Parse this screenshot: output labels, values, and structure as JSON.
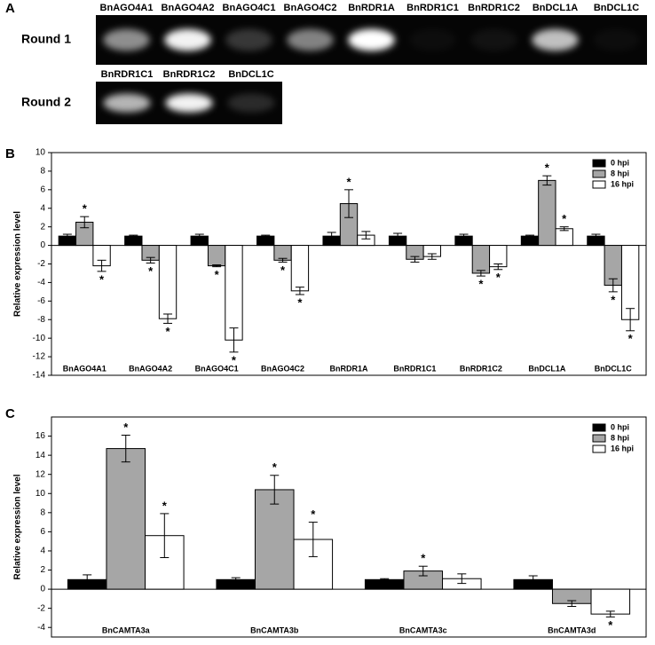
{
  "panel_labels": [
    "A",
    "B",
    "C"
  ],
  "gel": {
    "rounds": [
      {
        "label": "Round 1",
        "lanes": [
          "BnAGO4A1",
          "BnAGO4A2",
          "BnAGO4C1",
          "BnAGO4C2",
          "BnRDR1A",
          "BnRDR1C1",
          "BnRDR1C2",
          "BnDCL1A",
          "BnDCL1C"
        ]
      },
      {
        "label": "Round 2",
        "lanes": [
          "BnRDR1C1",
          "BnRDR1C2",
          "BnDCL1C"
        ]
      }
    ]
  },
  "chart_data": [
    {
      "type": "bar",
      "y_label": "Relative expression level",
      "categories": [
        "BnAGO4A1",
        "BnAGO4A2",
        "BnAGO4C1",
        "BnAGO4C2",
        "BnRDR1A",
        "BnRDR1C1",
        "BnRDR1C2",
        "BnDCL1A",
        "BnDCL1C"
      ],
      "series": [
        {
          "name": "0 hpi",
          "color": "#000000",
          "values": [
            1,
            1,
            1,
            1,
            1,
            1,
            1,
            1,
            1
          ],
          "errors": [
            0.2,
            0.1,
            0.2,
            0.1,
            0.4,
            0.3,
            0.2,
            0.1,
            0.2
          ]
        },
        {
          "name": "8 hpi",
          "color": "#a6a6a6",
          "values": [
            2.5,
            -1.6,
            -2.2,
            -1.6,
            4.5,
            -1.5,
            -3.0,
            7.0,
            -4.3
          ],
          "errors": [
            0.6,
            0.3,
            0.1,
            0.2,
            1.5,
            0.3,
            0.3,
            0.5,
            0.7
          ]
        },
        {
          "name": "16 hpi",
          "color": "#ffffff",
          "values": [
            -2.2,
            -7.9,
            -10.2,
            -4.9,
            1.1,
            -1.2,
            -2.3,
            1.8,
            -8.0
          ],
          "errors": [
            0.6,
            0.5,
            1.3,
            0.4,
            0.4,
            0.3,
            0.3,
            0.2,
            1.2
          ]
        }
      ],
      "annotations": [
        {
          "series": 1,
          "index": 0,
          "text": "*"
        },
        {
          "series": 2,
          "index": 0,
          "text": "*"
        },
        {
          "series": 1,
          "index": 1,
          "text": "*"
        },
        {
          "series": 2,
          "index": 1,
          "text": "*"
        },
        {
          "series": 1,
          "index": 2,
          "text": "*"
        },
        {
          "series": 2,
          "index": 2,
          "text": "*"
        },
        {
          "series": 1,
          "index": 3,
          "text": "*"
        },
        {
          "series": 2,
          "index": 3,
          "text": "*"
        },
        {
          "series": 1,
          "index": 4,
          "text": "*"
        },
        {
          "series": 1,
          "index": 6,
          "text": "*"
        },
        {
          "series": 2,
          "index": 6,
          "text": "*"
        },
        {
          "series": 1,
          "index": 7,
          "text": "*"
        },
        {
          "series": 2,
          "index": 7,
          "text": "*"
        },
        {
          "series": 1,
          "index": 8,
          "text": "*"
        },
        {
          "series": 2,
          "index": 8,
          "text": "*"
        }
      ],
      "ylim": [
        -14,
        10
      ],
      "yticks": [
        -14,
        -12,
        -10,
        -8,
        -6,
        -4,
        -2,
        0,
        2,
        4,
        6,
        8,
        10
      ],
      "legend": "top-right"
    },
    {
      "type": "bar",
      "y_label": "Relative expression level",
      "categories": [
        "BnCAMTA3a",
        "BnCAMTA3b",
        "BnCAMTA3c",
        "BnCAMTA3d"
      ],
      "series": [
        {
          "name": "0 hpi",
          "color": "#000000",
          "values": [
            1,
            1,
            1,
            1
          ],
          "errors": [
            0.5,
            0.2,
            0.1,
            0.4
          ]
        },
        {
          "name": "8 hpi",
          "color": "#a6a6a6",
          "values": [
            14.7,
            10.4,
            1.9,
            -1.5
          ],
          "errors": [
            1.4,
            1.5,
            0.5,
            0.3
          ]
        },
        {
          "name": "16 hpi",
          "color": "#ffffff",
          "values": [
            5.6,
            5.2,
            1.1,
            -2.6
          ],
          "errors": [
            2.3,
            1.8,
            0.5,
            0.3
          ]
        }
      ],
      "annotations": [
        {
          "series": 1,
          "index": 0,
          "text": "*"
        },
        {
          "series": 2,
          "index": 0,
          "text": "*"
        },
        {
          "series": 1,
          "index": 1,
          "text": "*"
        },
        {
          "series": 2,
          "index": 1,
          "text": "*"
        },
        {
          "series": 1,
          "index": 2,
          "text": "*"
        },
        {
          "series": 2,
          "index": 3,
          "text": "*"
        }
      ],
      "ylim": [
        -5,
        18
      ],
      "yticks": [
        -4,
        -2,
        0,
        2,
        4,
        6,
        8,
        10,
        12,
        14,
        16
      ],
      "legend": "top-right"
    }
  ]
}
